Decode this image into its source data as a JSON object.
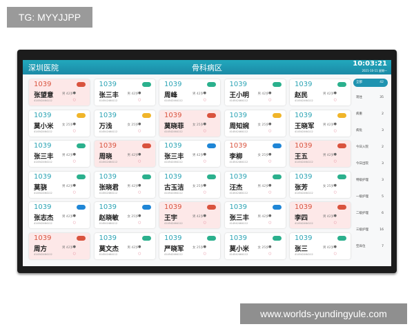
{
  "watermark_top": "TG: MYYJJPP",
  "watermark_bottom": "www.worlds-yundingyule.com",
  "header": {
    "hospital": "深圳医院",
    "ward": "骨科病区",
    "time": "10:03:21",
    "date": "2021-10-11 星期一"
  },
  "colors": {
    "teal": "#2aa3b4",
    "red": "#d9533e",
    "yellow": "#f0b52a",
    "blue": "#1f86d6",
    "green": "#2bb08d",
    "header": "#1f93b0"
  },
  "beds": [
    {
      "bed": "1039",
      "name": "张望意",
      "info": "男 42岁",
      "id": "414542464112",
      "badge": "red",
      "alert": true
    },
    {
      "bed": "1039",
      "name": "张三丰",
      "info": "男 42岁",
      "id": "414542464112",
      "badge": "green"
    },
    {
      "bed": "1039",
      "name": "周峰",
      "info": "男 42岁",
      "id": "414542464112",
      "badge": "green"
    },
    {
      "bed": "1039",
      "name": "王小明",
      "info": "男 42岁",
      "id": "414542464112",
      "badge": "green"
    },
    {
      "bed": "1039",
      "name": "赵民",
      "info": "男 42岁",
      "id": "414542464112",
      "badge": "green"
    },
    {
      "bed": "1039",
      "name": "莫小米",
      "info": "女 25岁",
      "id": "414542464112",
      "badge": "yellow"
    },
    {
      "bed": "1039",
      "name": "万浅",
      "info": "女 25岁",
      "id": "414542464112",
      "badge": "yellow"
    },
    {
      "bed": "1039",
      "name": "莫晓菲",
      "info": "女 25岁",
      "id": "414542464112",
      "badge": "red",
      "alert": true
    },
    {
      "bed": "1039",
      "name": "周知婉",
      "info": "女 25岁",
      "id": "414542464112",
      "badge": "yellow"
    },
    {
      "bed": "1039",
      "name": "王晓军",
      "info": "男 42岁",
      "id": "414542464112",
      "badge": "yellow"
    },
    {
      "bed": "1039",
      "name": "张三丰",
      "info": "男 42岁",
      "id": "414542464112",
      "badge": "green"
    },
    {
      "bed": "1039",
      "name": "周晓",
      "info": "男 42岁",
      "id": "414542464112",
      "badge": "red",
      "alert": true
    },
    {
      "bed": "1039",
      "name": "张三丰",
      "info": "男 42岁",
      "id": "414542464112",
      "badge": "blue"
    },
    {
      "bed": "1039",
      "name": "李柳",
      "info": "女 25岁",
      "id": "414542464112",
      "badge": "blue",
      "rednum": true
    },
    {
      "bed": "1039",
      "name": "王五",
      "info": "男 42岁",
      "id": "414542464112",
      "badge": "red",
      "alert": true
    },
    {
      "bed": "1039",
      "name": "莫骁",
      "info": "男 42岁",
      "id": "414542464112",
      "badge": "green"
    },
    {
      "bed": "1039",
      "name": "张晓君",
      "info": "男 42岁",
      "id": "414542464112",
      "badge": "green"
    },
    {
      "bed": "1039",
      "name": "古玉洁",
      "info": "女 25岁",
      "id": "414542464112",
      "badge": "green"
    },
    {
      "bed": "1039",
      "name": "汪杰",
      "info": "男 42岁",
      "id": "414542464112",
      "badge": "green"
    },
    {
      "bed": "1039",
      "name": "张芳",
      "info": "女 25岁",
      "id": "414542464112",
      "badge": "green"
    },
    {
      "bed": "1039",
      "name": "张志杰",
      "info": "男 42岁",
      "id": "414542464112",
      "badge": "blue"
    },
    {
      "bed": "1039",
      "name": "赵晓敏",
      "info": "女 25岁",
      "id": "414542464112",
      "badge": "blue"
    },
    {
      "bed": "1039",
      "name": "王宇",
      "info": "男 42岁",
      "id": "414542464112",
      "badge": "red",
      "alert": true
    },
    {
      "bed": "1039",
      "name": "张三丰",
      "info": "男 42岁",
      "id": "414542464112",
      "badge": "blue"
    },
    {
      "bed": "1039",
      "name": "李四",
      "info": "男 42岁",
      "id": "414542464112",
      "badge": "red",
      "alert": true
    },
    {
      "bed": "1039",
      "name": "周方",
      "info": "男 42岁",
      "id": "414542464112",
      "badge": "red",
      "alert": true
    },
    {
      "bed": "1039",
      "name": "莫文杰",
      "info": "男 42岁",
      "id": "414542464112",
      "badge": "green"
    },
    {
      "bed": "1039",
      "name": "严晓军",
      "info": "女 25岁",
      "id": "414542464112",
      "badge": "green"
    },
    {
      "bed": "1039",
      "name": "莫小米",
      "info": "女 25岁",
      "id": "414542464112",
      "badge": "green"
    },
    {
      "bed": "1039",
      "name": "张三",
      "info": "男 42岁",
      "id": "414542464112",
      "badge": "green"
    }
  ],
  "sidebar": [
    {
      "label": "全部",
      "count": "42",
      "active": true
    },
    {
      "label": "现住",
      "count": "35"
    },
    {
      "label": "病重",
      "count": "2"
    },
    {
      "label": "病危",
      "count": "3"
    },
    {
      "label": "今日入院",
      "count": "2"
    },
    {
      "label": "今日出院",
      "count": "3"
    },
    {
      "label": "特级护理",
      "count": "3"
    },
    {
      "label": "一级护理",
      "count": "5"
    },
    {
      "label": "二级护理",
      "count": "6"
    },
    {
      "label": "三级护理",
      "count": "16"
    },
    {
      "label": "空床位",
      "count": "7"
    }
  ]
}
